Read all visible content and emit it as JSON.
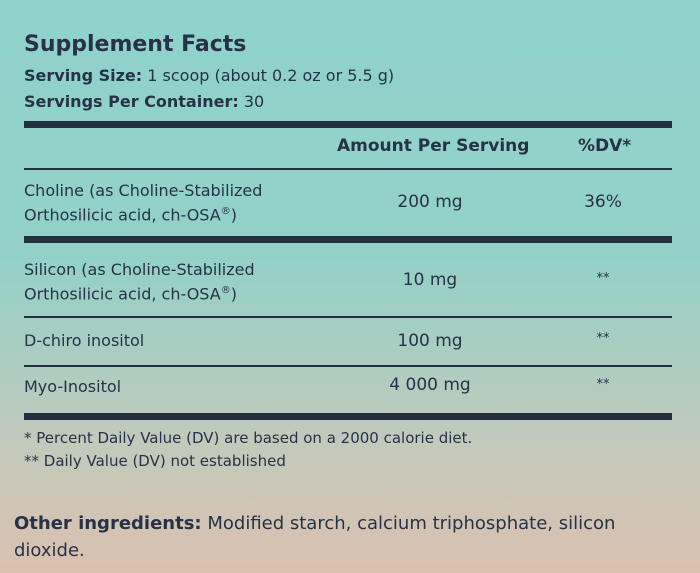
{
  "panel": {
    "title": "Supplement Facts",
    "serving_size_label": "Serving Size:",
    "serving_size_value": " 1 scoop (about 0.2 oz or 5.5 g)",
    "servings_per_container_label": "Servings Per Container:",
    "servings_per_container_value": " 30",
    "header_amount": "Amount Per Serving",
    "header_dv": "%DV*",
    "rows": [
      {
        "name_line1": "Choline (as Choline-Stabilized",
        "name_line2": "Orthosilicic acid, ch-OSA",
        "reg": "®",
        "name_line2_end": ")",
        "amount": "200 mg",
        "dv": "36%"
      },
      {
        "name_line1": "Silicon (as Choline-Stabilized",
        "name_line2": "Orthosilicic acid, ch-OSA",
        "reg": "®",
        "name_line2_end": ")",
        "amount": "10 mg",
        "dv": "**"
      },
      {
        "name_line1": "D-chiro inositol",
        "amount": "100 mg",
        "dv": "**"
      },
      {
        "name_line1": "Myo-Inositol",
        "amount": "4 000 mg",
        "dv": "**"
      }
    ],
    "footnote1": "* Percent Daily Value (DV) are based on a 2000 calorie diet.",
    "footnote2": "** Daily Value (DV) not established"
  },
  "other_ingredients": {
    "label": "Other ingredients:",
    "text": " Modified starch, calcium triphosphate, silicon dioxide."
  },
  "colors": {
    "text": "#273247",
    "rules": "#223040",
    "background_top": "#8fd3cc",
    "background_bottom": "#dcc0b0"
  }
}
